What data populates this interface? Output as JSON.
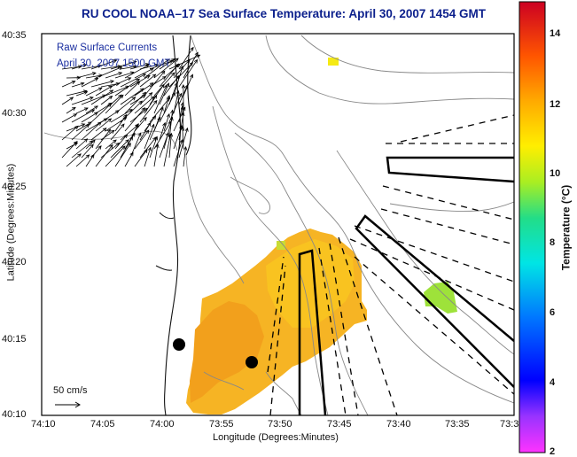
{
  "title": "RU COOL  NOAA–17  Sea Surface Temperature:  April 30, 2007 1454 GMT",
  "legend": {
    "line1": "Raw Surface Currents",
    "line2": "April 30, 2007 1500 GMT"
  },
  "axes": {
    "xlabel": "Longitude (Degrees:Minutes)",
    "ylabel": "Latitude (Degrees:Minutes)",
    "x_ticks": [
      "74:10",
      "74:05",
      "74:00",
      "73:55",
      "73:50",
      "73:45",
      "73:40",
      "73:35",
      "73:3"
    ],
    "y_ticks": [
      "40:35",
      "40:30",
      "40:25",
      "40:20",
      "40:15",
      "40:10"
    ]
  },
  "colorbar": {
    "label": "Temperature (°C)",
    "ticks": [
      "14",
      "12",
      "10",
      "8",
      "6",
      "4",
      "2"
    ],
    "range": [
      2,
      15
    ]
  },
  "scale_vector": {
    "label": "50 cm/s"
  },
  "colors": {
    "title": "#0b1f8c",
    "sst_warm": "#f2a21e",
    "sst_mid": "#f7c21c",
    "sst_cool": "#9be03a",
    "marker": "#000000"
  }
}
